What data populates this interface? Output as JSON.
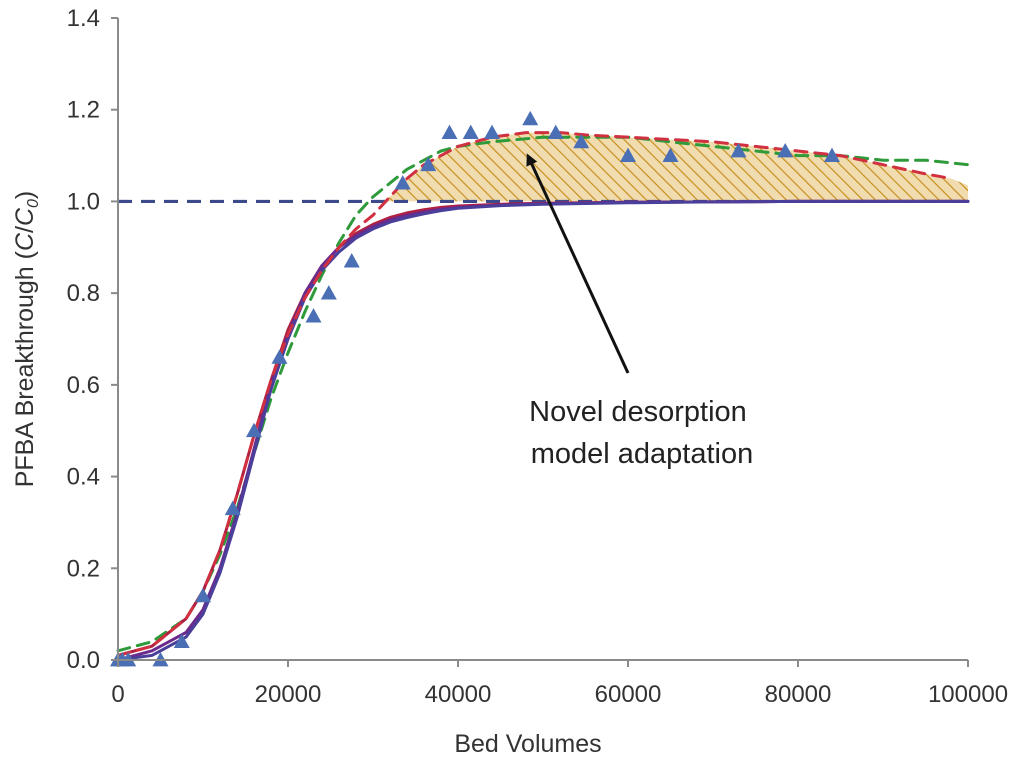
{
  "chart_data": {
    "type": "line",
    "xlabel": "Bed Volumes",
    "ylabel": "PFBA Breakthrough (C/C0)",
    "ylabel_parts": {
      "prefix": "PFBA Breakthrough (",
      "var": "C",
      "slash": "/",
      "var2": "C",
      "sub": "0",
      "suffix": ")"
    },
    "xlim": [
      0,
      100000
    ],
    "ylim": [
      0,
      1.4
    ],
    "xticks": [
      0,
      20000,
      40000,
      60000,
      80000,
      100000
    ],
    "yticks": [
      "0.0",
      "0.2",
      "0.4",
      "0.6",
      "0.8",
      "1.0",
      "1.2",
      "1.4"
    ],
    "grid": false,
    "annotation": {
      "lines": [
        "Novel desorption",
        "model adaptation"
      ],
      "arrow_to": [
        49000,
        1.11
      ]
    },
    "reference_line": {
      "y": 1.0,
      "x": [
        0,
        100000
      ],
      "color": "#3c4a8c",
      "style": "dashed"
    },
    "hatched_region": {
      "upper": "red-dashed",
      "lower": "reference",
      "fill": "#f0dcae",
      "hatch_color": "#c89020",
      "x": [
        31000,
        100000
      ]
    },
    "series": [
      {
        "kind": "points",
        "color": "#4a6fb5",
        "marker": "triangle",
        "x": [
          0,
          500,
          1200,
          5000,
          7500,
          10000,
          13500,
          16000,
          19000,
          23000,
          24800,
          27500,
          33500,
          36500,
          39000,
          41500,
          44000,
          48500,
          51500,
          54500,
          60000,
          65000,
          73000,
          78500,
          84000
        ],
        "y": [
          0.0,
          0.0,
          0.0,
          0.0,
          0.04,
          0.14,
          0.33,
          0.5,
          0.66,
          0.75,
          0.8,
          0.87,
          1.04,
          1.08,
          1.15,
          1.15,
          1.15,
          1.18,
          1.15,
          1.13,
          1.1,
          1.1,
          1.11,
          1.11,
          1.1
        ]
      },
      {
        "kind": "line",
        "style": "dashed",
        "color": "#2e9a3a",
        "x": [
          0,
          4000,
          8000,
          10000,
          12000,
          14000,
          16000,
          18000,
          20000,
          22000,
          24000,
          26000,
          28000,
          30000,
          32000,
          34000,
          36000,
          38000,
          40000,
          44000,
          50000,
          55000,
          60000,
          65000,
          70000,
          75000,
          80000,
          85000,
          90000,
          95000,
          100000
        ],
        "y": [
          0.02,
          0.04,
          0.09,
          0.15,
          0.23,
          0.33,
          0.45,
          0.57,
          0.67,
          0.76,
          0.84,
          0.91,
          0.97,
          1.01,
          1.04,
          1.07,
          1.09,
          1.11,
          1.12,
          1.13,
          1.14,
          1.14,
          1.14,
          1.13,
          1.12,
          1.11,
          1.1,
          1.1,
          1.09,
          1.09,
          1.08
        ]
      },
      {
        "kind": "line",
        "style": "solid",
        "color": "#b02040",
        "x": [
          0,
          4000,
          8000,
          10000,
          12000,
          14000,
          16000,
          18000,
          20000,
          22000,
          24000,
          26000,
          28000,
          30000,
          32000,
          34000,
          36000,
          38000,
          40000,
          45000,
          50000,
          60000,
          70000,
          80000,
          90000,
          100000
        ],
        "y": [
          0.01,
          0.03,
          0.09,
          0.15,
          0.24,
          0.36,
          0.49,
          0.61,
          0.72,
          0.8,
          0.86,
          0.9,
          0.93,
          0.95,
          0.965,
          0.975,
          0.982,
          0.987,
          0.99,
          0.994,
          0.996,
          0.998,
          0.999,
          1.0,
          1.0,
          1.0
        ]
      },
      {
        "kind": "line",
        "style": "solid",
        "color": "#6a2b8c",
        "x": [
          0,
          4000,
          8000,
          10000,
          12000,
          14000,
          16000,
          18000,
          20000,
          22000,
          24000,
          26000,
          28000,
          30000,
          32000,
          34000,
          36000,
          38000,
          40000,
          45000,
          50000,
          60000,
          70000,
          80000,
          90000,
          100000
        ],
        "y": [
          0.0,
          0.02,
          0.06,
          0.11,
          0.2,
          0.32,
          0.46,
          0.6,
          0.71,
          0.8,
          0.86,
          0.9,
          0.925,
          0.945,
          0.96,
          0.97,
          0.977,
          0.983,
          0.987,
          0.992,
          0.995,
          0.998,
          0.999,
          1.0,
          1.0,
          1.0
        ]
      },
      {
        "kind": "line",
        "style": "solid",
        "color": "#4a3f9a",
        "x": [
          0,
          4000,
          8000,
          10000,
          12000,
          14000,
          16000,
          18000,
          20000,
          22000,
          24000,
          26000,
          28000,
          30000,
          32000,
          34000,
          36000,
          38000,
          40000,
          45000,
          50000,
          60000,
          70000,
          80000,
          90000,
          100000
        ],
        "y": [
          0.0,
          0.01,
          0.05,
          0.1,
          0.19,
          0.31,
          0.45,
          0.59,
          0.7,
          0.79,
          0.85,
          0.89,
          0.92,
          0.94,
          0.955,
          0.965,
          0.973,
          0.98,
          0.985,
          0.991,
          0.994,
          0.997,
          0.999,
          1.0,
          1.0,
          1.0
        ]
      },
      {
        "kind": "line",
        "style": "dashed",
        "color": "#d03040",
        "x": [
          0,
          4000,
          8000,
          10000,
          12000,
          14000,
          16000,
          18000,
          20000,
          22000,
          24000,
          26000,
          28000,
          30000,
          32000,
          34000,
          36000,
          38000,
          40000,
          42000,
          44000,
          46000,
          48000,
          50000,
          52000,
          55000,
          60000,
          65000,
          70000,
          75000,
          80000,
          85000,
          90000,
          95000,
          98000
        ],
        "y": [
          0.01,
          0.03,
          0.09,
          0.15,
          0.24,
          0.36,
          0.49,
          0.61,
          0.71,
          0.79,
          0.85,
          0.9,
          0.94,
          0.97,
          1.01,
          1.05,
          1.08,
          1.1,
          1.12,
          1.13,
          1.14,
          1.145,
          1.15,
          1.15,
          1.15,
          1.145,
          1.14,
          1.135,
          1.13,
          1.12,
          1.11,
          1.1,
          1.08,
          1.06,
          1.05
        ]
      }
    ]
  }
}
